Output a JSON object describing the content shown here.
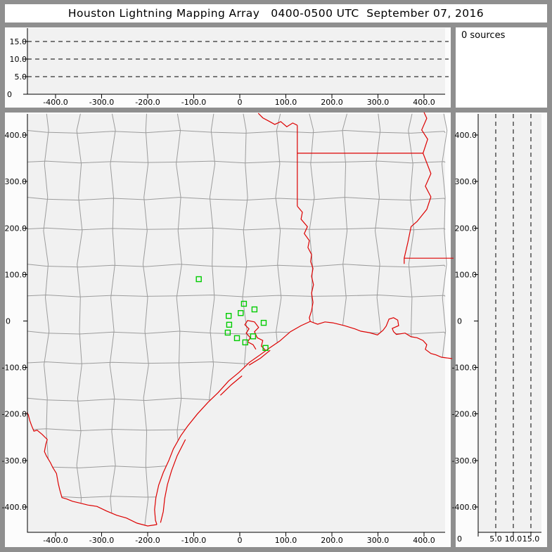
{
  "window": {
    "title": "Houston Lightning Mapping Array   0400-0500 UTC  September 07, 2016"
  },
  "sources_panel": {
    "label": "0 sources"
  },
  "colors": {
    "frame": "#8f8f8f",
    "panel_bg": "#fcfcfc",
    "plot_bg": "#f1f1f1",
    "county": "#9c9c9c",
    "state_border": "#dd0000",
    "station": "#00cc00",
    "axis": "#000000"
  },
  "ew_axis": {
    "tick_values": [
      -400,
      -300,
      -200,
      -100,
      0,
      100,
      200,
      300,
      400
    ],
    "tick_labels": [
      "-400.0",
      "-300.0",
      "-200.0",
      "-100.0",
      "0",
      "100.0",
      "200.0",
      "300.0",
      "400.0"
    ],
    "min": -461,
    "max": 446
  },
  "ns_axis": {
    "tick_values": [
      400,
      300,
      200,
      100,
      0,
      -100,
      -200,
      -300,
      -400
    ],
    "tick_labels": [
      "400.0",
      "300.0",
      "200.0",
      "100.0",
      "0",
      "-100.0",
      "-200.0",
      "-300.0",
      "-400.0"
    ],
    "min": -455,
    "max": 445.5
  },
  "alt_axis": {
    "tick_values": [
      0,
      5,
      10,
      15
    ],
    "tick_labels": [
      "0",
      "5.0",
      "10.0",
      "15.0"
    ],
    "dashed_levels": [
      5,
      10,
      15
    ],
    "max": 18.8
  },
  "map": {
    "stations": [
      [
        -89,
        90
      ],
      [
        9,
        37
      ],
      [
        32,
        25
      ],
      [
        2,
        17
      ],
      [
        -24,
        11
      ],
      [
        -23,
        -8
      ],
      [
        52,
        -4
      ],
      [
        -26,
        -25
      ],
      [
        -6,
        -37
      ],
      [
        29,
        -33
      ],
      [
        12,
        -46
      ],
      [
        56,
        -58
      ]
    ],
    "borders": {
      "gulf_coast": [
        [
          461,
          -81
        ],
        [
          438,
          -78
        ],
        [
          426,
          -73
        ],
        [
          415,
          -70
        ],
        [
          403,
          -61
        ],
        [
          406,
          -51
        ],
        [
          398,
          -42
        ],
        [
          385,
          -36
        ],
        [
          372,
          -34
        ],
        [
          359,
          -26
        ],
        [
          340,
          -29
        ],
        [
          334,
          -23
        ],
        [
          331,
          -16
        ],
        [
          345,
          -10
        ],
        [
          343,
          2
        ],
        [
          334,
          7
        ],
        [
          324,
          4
        ],
        [
          318,
          -11
        ],
        [
          311,
          -20
        ],
        [
          299,
          -30
        ],
        [
          281,
          -25
        ],
        [
          263,
          -22
        ],
        [
          250,
          -17
        ],
        [
          227,
          -10
        ],
        [
          202,
          -4
        ],
        [
          185,
          -2
        ],
        [
          169,
          -7
        ],
        [
          153,
          -1
        ],
        [
          133,
          -10
        ],
        [
          110,
          -23
        ],
        [
          87,
          -43
        ],
        [
          66,
          -57
        ],
        [
          44,
          -73
        ],
        [
          21,
          -89
        ],
        [
          -2,
          -111
        ],
        [
          -24,
          -129
        ],
        [
          -47,
          -154
        ],
        [
          -69,
          -175
        ],
        [
          -92,
          -200
        ],
        [
          -113,
          -226
        ],
        [
          -128,
          -247
        ],
        [
          -144,
          -275
        ],
        [
          -154,
          -300
        ],
        [
          -166,
          -326
        ],
        [
          -176,
          -353
        ],
        [
          -182,
          -380
        ],
        [
          -185,
          -406
        ],
        [
          -183,
          -429
        ],
        [
          -180,
          -438
        ]
      ],
      "rio_grande": [
        [
          -180,
          -438
        ],
        [
          -200,
          -441
        ],
        [
          -223,
          -435
        ],
        [
          -246,
          -424
        ],
        [
          -267,
          -418
        ],
        [
          -289,
          -409
        ],
        [
          -310,
          -399
        ],
        [
          -330,
          -396
        ],
        [
          -350,
          -391
        ],
        [
          -363,
          -388
        ],
        [
          -376,
          -383
        ],
        [
          -386,
          -380
        ],
        [
          -391,
          -362
        ],
        [
          -394,
          -350
        ],
        [
          -398,
          -328
        ],
        [
          -406,
          -315
        ],
        [
          -411,
          -305
        ],
        [
          -420,
          -290
        ],
        [
          -424,
          -281
        ],
        [
          -421,
          -265
        ],
        [
          -418,
          -255
        ],
        [
          -429,
          -244
        ],
        [
          -440,
          -235
        ],
        [
          -447,
          -237
        ],
        [
          -452,
          -225
        ],
        [
          -456,
          -214
        ],
        [
          -459,
          -202
        ],
        [
          -462,
          -196
        ]
      ],
      "sabine_river": [
        [
          125,
          247
        ],
        [
          136,
          234
        ],
        [
          133,
          219
        ],
        [
          147,
          203
        ],
        [
          140,
          188
        ],
        [
          151,
          173
        ],
        [
          148,
          158
        ],
        [
          156,
          143
        ],
        [
          154,
          128
        ],
        [
          159,
          113
        ],
        [
          156,
          96
        ],
        [
          160,
          78
        ],
        [
          156,
          60
        ],
        [
          159,
          40
        ],
        [
          156,
          22
        ],
        [
          151,
          7
        ],
        [
          153,
          -1
        ]
      ],
      "red_river": [
        [
          40,
          447
        ],
        [
          50,
          437
        ],
        [
          63,
          430
        ],
        [
          76,
          423
        ],
        [
          89,
          429
        ],
        [
          102,
          418
        ],
        [
          115,
          426
        ],
        [
          125,
          421
        ]
      ],
      "tx_ar_border": [
        [
          125,
          421
        ],
        [
          125,
          247
        ]
      ],
      "ar_la_border": [
        [
          125,
          361
        ],
        [
          398,
          361
        ]
      ],
      "mississippi_river": [
        [
          400,
          449
        ],
        [
          406,
          436
        ],
        [
          395,
          411
        ],
        [
          408,
          391
        ],
        [
          398,
          361
        ],
        [
          415,
          317
        ],
        [
          403,
          290
        ],
        [
          415,
          267
        ],
        [
          406,
          240
        ],
        [
          385,
          214
        ],
        [
          372,
          203
        ],
        [
          365,
          169
        ],
        [
          357,
          135
        ],
        [
          357,
          123
        ]
      ],
      "la_ms_border": [
        [
          357,
          135
        ],
        [
          464,
          135
        ]
      ],
      "galveston_bay": [
        [
          56,
          -63
        ],
        [
          47,
          -54
        ],
        [
          50,
          -42
        ],
        [
          38,
          -36
        ],
        [
          32,
          -23
        ],
        [
          41,
          -14
        ],
        [
          32,
          -2
        ],
        [
          17,
          1
        ],
        [
          11,
          -8
        ],
        [
          20,
          -17
        ],
        [
          14,
          -26
        ],
        [
          23,
          -36
        ],
        [
          17,
          -45
        ],
        [
          29,
          -51
        ],
        [
          35,
          -61
        ]
      ],
      "barrier_islands": [
        [
          [
            20,
            -95
          ],
          [
            45,
            -80
          ],
          [
            66,
            -63
          ]
        ],
        [
          [
            -42,
            -160
          ],
          [
            -18,
            -137
          ],
          [
            5,
            -118
          ]
        ],
        [
          [
            -118,
            -255
          ],
          [
            -136,
            -290
          ],
          [
            -148,
            -322
          ],
          [
            -157,
            -352
          ],
          [
            -163,
            -382
          ],
          [
            -166,
            -410
          ],
          [
            -172,
            -434
          ]
        ]
      ]
    },
    "county_grid": {
      "x_positions": [
        -420,
        -348,
        -276,
        -204,
        -132,
        -60,
        12,
        84,
        156,
        228,
        300,
        372,
        444
      ],
      "y_positions": [
        410,
        338,
        266,
        194,
        122,
        50,
        -22,
        -94,
        -166,
        -238,
        -310,
        -382
      ],
      "y_samples": [
        450,
        410,
        338,
        266,
        194,
        122,
        50,
        -22,
        -94,
        -166,
        -238,
        -310,
        -382,
        -455
      ],
      "x_samples": [
        -461,
        -420,
        -348,
        -276,
        -204,
        -132,
        -60,
        12,
        84,
        156,
        228,
        300,
        372,
        444,
        446
      ],
      "jitter": [
        0,
        5,
        -4,
        3,
        -6,
        4,
        -2,
        6,
        -5,
        2
      ]
    }
  }
}
